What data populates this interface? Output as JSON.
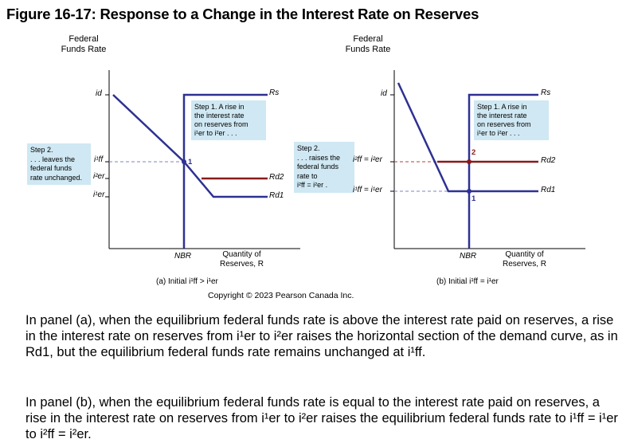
{
  "figure": {
    "title": "Figure 16-17: Response to a Change in the Interest Rate on Reserves"
  },
  "panel_a": {
    "y_axis_label_line1": "Federal",
    "y_axis_label_line2": "Funds Rate",
    "step1_lines": [
      "Step 1. A rise in",
      "the interest rate",
      "on reserves from",
      "i¹er to i²er . . ."
    ],
    "step2_lines": [
      "Step 2.",
      ". . . leaves the",
      "federal funds",
      "rate unchanged."
    ],
    "label_id": "id",
    "label_iff1": "i¹ff",
    "label_ier2": "i²er",
    "label_ier1": "i¹er",
    "label_rs": "Rs",
    "label_rd2": "Rd2",
    "label_rd1": "Rd1",
    "label_nbr": "NBR",
    "x_axis_label_line1": "Quantity of",
    "x_axis_label_line2": "Reserves, R",
    "point": "1",
    "caption": "(a) Initial i¹ff > i¹er"
  },
  "panel_b": {
    "y_axis_label_line1": "Federal",
    "y_axis_label_line2": "Funds Rate",
    "step1_lines": [
      "Step 1. A rise in",
      "the interest rate",
      "on reserves from",
      "i¹er to i²er . . ."
    ],
    "step2_lines": [
      "Step 2.",
      ". . . raises the",
      "federal funds",
      "rate to",
      "i²ff = i²er ."
    ],
    "label_id": "id",
    "label_iff2": "i²ff = i²er",
    "label_iff1": "i¹ff = i¹er",
    "label_rs": "Rs",
    "label_rd2": "Rd2",
    "label_rd1": "Rd1",
    "label_nbr": "NBR",
    "x_axis_label_line1": "Quantity of",
    "x_axis_label_line2": "Reserves, R",
    "point1": "1",
    "point2": "2",
    "caption": "(b) Initial i¹ff = i¹er"
  },
  "copyright": "Copyright © 2023 Pearson Canada Inc.",
  "paragraph1": "In panel (a), when the equilibrium federal funds rate is above the interest rate paid on reserves, a rise in the interest rate on reserves from i¹er to i²er raises the horizontal section of the demand curve, as in Rd1, but the equilibrium federal funds rate remains unchanged at i¹ff.",
  "paragraph2": "In panel (b), when the equilibrium federal funds rate is equal to the interest rate paid on reserves, a rise in the interest rate on reserves from i¹er to i²er raises the equilibrium federal funds rate to i¹ff = i¹er to i²ff = i²er.",
  "colors": {
    "supply": "#2e3192",
    "demand_new": "#8b1a1a",
    "box": "#cfe8f3",
    "dashed": "#7b86c4"
  }
}
